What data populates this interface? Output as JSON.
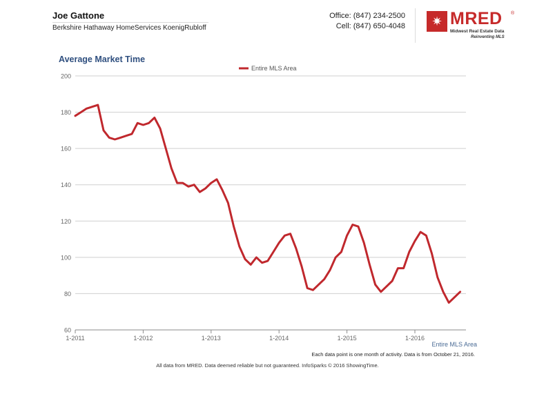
{
  "header": {
    "agent_name": "Joe Gattone",
    "company": "Berkshire Hathaway HomeServices KoenigRubloff",
    "office_phone": "Office: (847) 234-2500",
    "cell_phone": "Cell: (847) 650-4048",
    "logo": {
      "text": "MRED",
      "registered_mark": "®",
      "tagline": "Midwest Real Estate Data",
      "slogan": "Reinventing MLS",
      "icon": "star-burst-icon",
      "color": "#c62a2a"
    }
  },
  "chart_data": {
    "type": "line",
    "title": "Average Market Time",
    "xlabel": "Entire MLS Area",
    "ylabel": "",
    "ylim": [
      60,
      200
    ],
    "yticks": [
      60,
      80,
      100,
      120,
      140,
      160,
      180,
      200
    ],
    "x_tick_labels": [
      "1-2011",
      "1-2012",
      "1-2013",
      "1-2014",
      "1-2015",
      "1-2016"
    ],
    "grid": true,
    "legend_position": "top-center",
    "line_color": "#c0282d",
    "series": [
      {
        "name": "Entire MLS Area",
        "x": [
          "2011-01",
          "2011-02",
          "2011-03",
          "2011-04",
          "2011-05",
          "2011-06",
          "2011-07",
          "2011-08",
          "2011-09",
          "2011-10",
          "2011-11",
          "2011-12",
          "2012-01",
          "2012-02",
          "2012-03",
          "2012-04",
          "2012-05",
          "2012-06",
          "2012-07",
          "2012-08",
          "2012-09",
          "2012-10",
          "2012-11",
          "2012-12",
          "2013-01",
          "2013-02",
          "2013-03",
          "2013-04",
          "2013-05",
          "2013-06",
          "2013-07",
          "2013-08",
          "2013-09",
          "2013-10",
          "2013-11",
          "2013-12",
          "2014-01",
          "2014-02",
          "2014-03",
          "2014-04",
          "2014-05",
          "2014-06",
          "2014-07",
          "2014-08",
          "2014-09",
          "2014-10",
          "2014-11",
          "2014-12",
          "2015-01",
          "2015-02",
          "2015-03",
          "2015-04",
          "2015-05",
          "2015-06",
          "2015-07",
          "2015-08",
          "2015-09",
          "2015-10",
          "2015-11",
          "2015-12",
          "2016-01",
          "2016-02",
          "2016-03",
          "2016-04",
          "2016-05",
          "2016-06",
          "2016-07",
          "2016-08",
          "2016-09"
        ],
        "values": [
          178,
          180,
          182,
          183,
          184,
          170,
          166,
          165,
          166,
          167,
          168,
          174,
          173,
          174,
          177,
          171,
          160,
          149,
          141,
          141,
          139,
          140,
          136,
          138,
          141,
          143,
          137,
          130,
          117,
          106,
          99,
          96,
          100,
          97,
          98,
          103,
          108,
          112,
          113,
          105,
          95,
          83,
          82,
          85,
          88,
          93,
          100,
          103,
          112,
          118,
          117,
          108,
          96,
          85,
          81,
          84,
          87,
          94,
          94,
          103,
          109,
          114,
          112,
          102,
          89,
          81,
          75,
          78,
          81
        ]
      }
    ],
    "notes": "Each data point is one month of activity. Data is from October 21, 2016."
  },
  "footer": {
    "disclaimer": "All data from MRED. Data deemed reliable but not guaranteed. InfoSparks © 2016 ShowingTime."
  }
}
